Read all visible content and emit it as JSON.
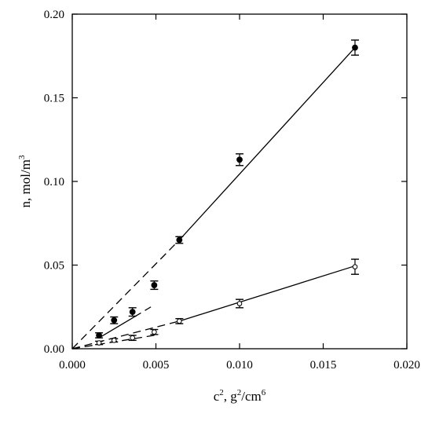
{
  "chart_data": {
    "type": "scatter",
    "xlabel": {
      "base": "c",
      "base_sup": "2",
      "units": ", g",
      "units_sup": "2",
      "units_mid": "/cm",
      "units_sup2": "6"
    },
    "ylabel": {
      "text": "n, mol/m",
      "sup": "3"
    },
    "xlim": [
      0,
      0.02
    ],
    "ylim": [
      0,
      0.2
    ],
    "xticks": [
      "0.000",
      "0.005",
      "0.010",
      "0.015",
      "0.020"
    ],
    "yticks": [
      "0.00",
      "0.05",
      "0.10",
      "0.15",
      "0.20"
    ],
    "grid": false,
    "series": [
      {
        "marker": "filled-circle",
        "points": [
          {
            "x": 0.0016,
            "y": 0.008,
            "err": 0.0015
          },
          {
            "x": 0.0025,
            "y": 0.017,
            "err": 0.002
          },
          {
            "x": 0.0036,
            "y": 0.022,
            "err": 0.0025
          },
          {
            "x": 0.0049,
            "y": 0.038,
            "err": 0.0025
          },
          {
            "x": 0.0064,
            "y": 0.065,
            "err": 0.002
          },
          {
            "x": 0.01,
            "y": 0.113,
            "err": 0.0035
          },
          {
            "x": 0.0169,
            "y": 0.18,
            "err": 0.0045
          }
        ]
      },
      {
        "marker": "open-circle",
        "points": [
          {
            "x": 0.0016,
            "y": 0.0035,
            "err": 0.001
          },
          {
            "x": 0.0025,
            "y": 0.005,
            "err": 0.001
          },
          {
            "x": 0.0036,
            "y": 0.0065,
            "err": 0.0015
          },
          {
            "x": 0.0049,
            "y": 0.01,
            "err": 0.0015
          },
          {
            "x": 0.0064,
            "y": 0.0165,
            "err": 0.0015
          },
          {
            "x": 0.01,
            "y": 0.027,
            "err": 0.0025
          },
          {
            "x": 0.0169,
            "y": 0.049,
            "err": 0.0045
          }
        ]
      }
    ],
    "fit_lines": [
      {
        "style": "dashed",
        "points": [
          [
            0,
            0
          ],
          [
            0.0064,
            0.065
          ]
        ]
      },
      {
        "style": "solid",
        "points": [
          [
            0.0064,
            0.065
          ],
          [
            0.0169,
            0.18
          ]
        ]
      },
      {
        "style": "solid",
        "points": [
          [
            0.0016,
            0.0065
          ],
          [
            0.0037,
            0.019
          ]
        ]
      },
      {
        "style": "dashed",
        "points": [
          [
            0.0037,
            0.019
          ],
          [
            0.0047,
            0.025
          ]
        ]
      },
      {
        "style": "dashed",
        "points": [
          [
            0,
            0
          ],
          [
            0.0064,
            0.0165
          ]
        ]
      },
      {
        "style": "solid",
        "points": [
          [
            0.0064,
            0.0165
          ],
          [
            0.0169,
            0.0495
          ]
        ]
      },
      {
        "style": "dashed",
        "points": [
          [
            0,
            0
          ],
          [
            0.0052,
            0.0085
          ]
        ]
      }
    ]
  }
}
